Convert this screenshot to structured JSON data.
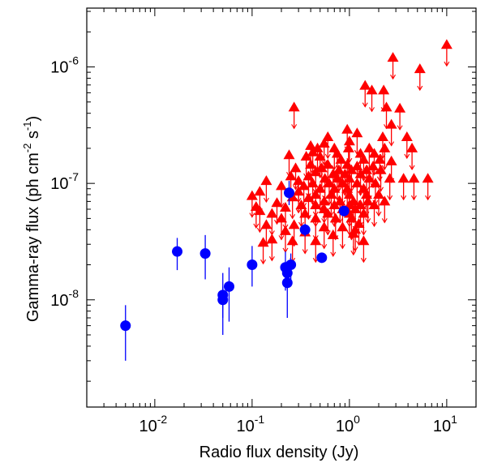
{
  "chart_data": {
    "type": "scatter",
    "xscale": "log",
    "yscale": "log",
    "xlim": [
      0.002,
      20
    ],
    "ylim": [
      1.2e-09,
      3.2e-06
    ],
    "grid": false,
    "xlabel": "Radio flux density (Jy)",
    "ylabel_main": "Gamma-ray flux (ph cm",
    "ylabel_sup1": "-2",
    "ylabel_mid": " s",
    "ylabel_sup2": "-1",
    "ylabel_end": ")",
    "xticks": [
      {
        "value": 0.01,
        "base": "10",
        "exp": "-2"
      },
      {
        "value": 0.1,
        "base": "10",
        "exp": "-1"
      },
      {
        "value": 1,
        "base": "10",
        "exp": "0"
      },
      {
        "value": 10,
        "base": "10",
        "exp": "1"
      }
    ],
    "yticks": [
      {
        "value": 1e-08,
        "base": "10",
        "exp": "-8"
      },
      {
        "value": 1e-07,
        "base": "10",
        "exp": "-7"
      },
      {
        "value": 1e-06,
        "base": "10",
        "exp": "-6"
      }
    ],
    "colors": {
      "red": "#ff0000",
      "blue": "#0000ff",
      "axis": "#000000"
    },
    "series": [
      {
        "marker": "triangle",
        "color": "#ff0000",
        "points": [
          [
            10.0,
            1.55e-06
          ],
          [
            2.8,
            1.2e-06
          ],
          [
            5.3,
            9.6e-07
          ],
          [
            1.45,
            6.9e-07
          ],
          [
            1.7,
            6.3e-07
          ],
          [
            2.25,
            6.3e-07
          ],
          [
            0.27,
            4.5e-07
          ],
          [
            2.4,
            4.5e-07
          ],
          [
            3.3,
            4.4e-07
          ],
          [
            2.7,
            3.2e-07
          ],
          [
            0.95,
            2.9e-07
          ],
          [
            1.2,
            2.7e-07
          ],
          [
            0.6,
            2.5e-07
          ],
          [
            2.2,
            2.5e-07
          ],
          [
            3.9,
            2.5e-07
          ],
          [
            1.0,
            2.3e-07
          ],
          [
            0.55,
            2.2e-07
          ],
          [
            0.4,
            2.1e-07
          ],
          [
            0.47,
            2e-07
          ],
          [
            0.7,
            2e-07
          ],
          [
            0.98,
            2e-07
          ],
          [
            1.6,
            2e-07
          ],
          [
            2.3,
            2e-07
          ],
          [
            4.4,
            2e-07
          ],
          [
            0.42,
            1.85e-07
          ],
          [
            0.75,
            1.8e-07
          ],
          [
            1.3,
            1.8e-07
          ],
          [
            1.8,
            1.8e-07
          ],
          [
            0.24,
            1.75e-07
          ],
          [
            0.36,
            1.7e-07
          ],
          [
            0.5,
            1.7e-07
          ],
          [
            0.82,
            1.6e-07
          ],
          [
            1.4,
            1.6e-07
          ],
          [
            2.05,
            1.6e-07
          ],
          [
            2.7,
            1.55e-07
          ],
          [
            0.4,
            1.45e-07
          ],
          [
            0.6,
            1.45e-07
          ],
          [
            0.95,
            1.45e-07
          ],
          [
            1.2,
            1.4e-07
          ],
          [
            1.75,
            1.4e-07
          ],
          [
            0.28,
            1.35e-07
          ],
          [
            0.52,
            1.35e-07
          ],
          [
            0.78,
            1.3e-07
          ],
          [
            1.05,
            1.3e-07
          ],
          [
            1.5,
            1.3e-07
          ],
          [
            2.1,
            1.3e-07
          ],
          [
            0.45,
            1.25e-07
          ],
          [
            0.68,
            1.2e-07
          ],
          [
            0.9,
            1.2e-07
          ],
          [
            1.3,
            1.2e-07
          ],
          [
            0.25,
            1.15e-07
          ],
          [
            0.38,
            1.15e-07
          ],
          [
            0.56,
            1.1e-07
          ],
          [
            0.75,
            1.1e-07
          ],
          [
            1.0,
            1.1e-07
          ],
          [
            1.6,
            1.1e-07
          ],
          [
            2.6,
            1.1e-07
          ],
          [
            3.6,
            1.1e-07
          ],
          [
            4.6,
            1.1e-07
          ],
          [
            6.4,
            1.1e-07
          ],
          [
            0.14,
            1.05e-07
          ],
          [
            0.3,
            1.05e-07
          ],
          [
            0.42,
            1e-07
          ],
          [
            0.62,
            1e-07
          ],
          [
            0.85,
            1e-07
          ],
          [
            1.2,
            1e-07
          ],
          [
            1.85,
            1e-07
          ],
          [
            0.2,
            9.5e-08
          ],
          [
            0.34,
            9.5e-08
          ],
          [
            0.5,
            9e-08
          ],
          [
            0.7,
            9e-08
          ],
          [
            0.95,
            9e-08
          ],
          [
            1.4,
            9e-08
          ],
          [
            0.12,
            8.5e-08
          ],
          [
            0.3,
            8.5e-08
          ],
          [
            0.45,
            8e-08
          ],
          [
            0.65,
            8e-08
          ],
          [
            1.0,
            8e-08
          ],
          [
            1.5,
            8e-08
          ],
          [
            2.0,
            8e-08
          ],
          [
            0.1,
            7.8e-08
          ],
          [
            0.26,
            7.6e-08
          ],
          [
            0.38,
            7.5e-08
          ],
          [
            0.55,
            7e-08
          ],
          [
            0.8,
            7e-08
          ],
          [
            1.1,
            7e-08
          ],
          [
            1.55,
            7e-08
          ],
          [
            2.3,
            7e-08
          ],
          [
            0.18,
            6.8e-08
          ],
          [
            0.32,
            6.5e-08
          ],
          [
            0.45,
            6.5e-08
          ],
          [
            0.7,
            6.5e-08
          ],
          [
            1.0,
            6.5e-08
          ],
          [
            1.3,
            6.5e-08
          ],
          [
            1.8,
            6.5e-08
          ],
          [
            0.11,
            6.3e-08
          ],
          [
            0.22,
            6.2e-08
          ],
          [
            0.55,
            6e-08
          ],
          [
            0.85,
            6e-08
          ],
          [
            1.15,
            6e-08
          ],
          [
            0.12,
            5.8e-08
          ],
          [
            0.16,
            5.5e-08
          ],
          [
            0.35,
            5.5e-08
          ],
          [
            0.6,
            5.5e-08
          ],
          [
            1.0,
            5.5e-08
          ],
          [
            1.4,
            5.5e-08
          ],
          [
            0.2,
            5e-08
          ],
          [
            0.45,
            5e-08
          ],
          [
            0.72,
            5e-08
          ],
          [
            1.05,
            5e-08
          ],
          [
            1.25,
            4.5e-08
          ],
          [
            0.14,
            4.4e-08
          ],
          [
            0.27,
            4.4e-08
          ],
          [
            0.55,
            4.2e-08
          ],
          [
            0.85,
            4.2e-08
          ],
          [
            1.15,
            4e-08
          ],
          [
            0.22,
            3.9e-08
          ],
          [
            0.35,
            3.8e-08
          ],
          [
            1.1,
            3.7e-08
          ],
          [
            0.68,
            3.6e-08
          ],
          [
            0.16,
            3.3e-08
          ],
          [
            0.26,
            3.2e-08
          ],
          [
            0.45,
            3.2e-08
          ],
          [
            1.4,
            3.2e-08
          ],
          [
            0.13,
            3.1e-08
          ]
        ]
      },
      {
        "marker": "circle",
        "color": "#0000ff",
        "points": [
          [
            0.005,
            6e-09,
            3e-09,
            9e-09
          ],
          [
            0.017,
            2.6e-08,
            1.8e-08,
            3.4e-08
          ],
          [
            0.033,
            2.5e-08,
            1.5e-08,
            3.6e-08
          ],
          [
            0.05,
            1.1e-08,
            5e-09,
            1.7e-08
          ],
          [
            0.05,
            1e-08,
            7e-09,
            1.3e-08
          ],
          [
            0.058,
            1.3e-08,
            6.5e-09,
            1.9e-08
          ],
          [
            0.1,
            2e-08,
            1.3e-08,
            2.9e-08
          ],
          [
            0.22,
            1.9e-08,
            1.2e-08,
            2.6e-08
          ],
          [
            0.23,
            1.7e-08,
            1.25e-08,
            2.1e-08
          ],
          [
            0.23,
            1.4e-08,
            7e-09,
            2e-08
          ],
          [
            0.24,
            8.3e-08,
            6.5e-08,
            1.05e-07
          ],
          [
            0.25,
            2e-08,
            1.5e-08,
            2.5e-08
          ],
          [
            0.35,
            4e-08,
            3.5e-08,
            4.5e-08
          ],
          [
            0.52,
            2.3e-08,
            2.1e-08,
            2.5e-08
          ],
          [
            0.88,
            5.8e-08,
            5.2e-08,
            6.4e-08
          ]
        ]
      }
    ]
  }
}
